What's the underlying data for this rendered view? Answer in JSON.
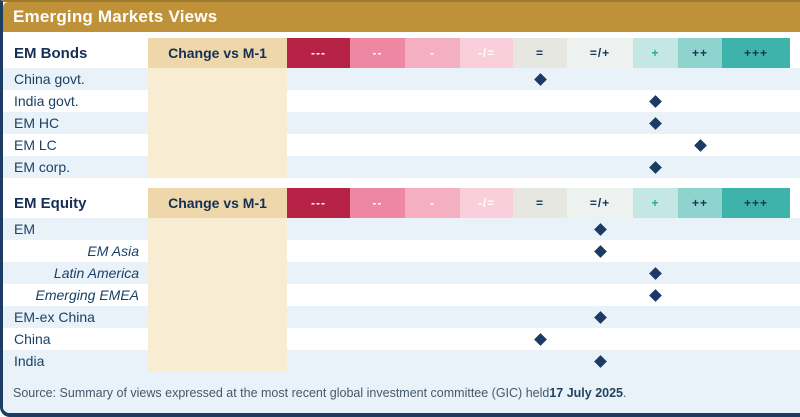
{
  "title": "Emerging Markets Views",
  "scale": {
    "change_label": "Change vs M-1",
    "levels": [
      {
        "label": "---",
        "bg": "#b62346",
        "fg": "#ffffff"
      },
      {
        "label": "--",
        "bg": "#ee87a2",
        "fg": "#ffffff"
      },
      {
        "label": "-",
        "bg": "#f4afc2",
        "fg": "#ffffff"
      },
      {
        "label": "-/=",
        "bg": "#f9cfdb",
        "fg": "#ffffff"
      },
      {
        "label": "=",
        "bg": "#e6e7e1",
        "fg": "#17365c"
      },
      {
        "label": "=/+",
        "bg": "#edf2ef",
        "fg": "#17365c"
      },
      {
        "label": "+",
        "bg": "#c4e7e3",
        "fg": "#28a79e"
      },
      {
        "label": "++",
        "bg": "#8ed3ce",
        "fg": "#17365c"
      },
      {
        "label": "+++",
        "bg": "#3db3ac",
        "fg": "#17365c"
      }
    ]
  },
  "sections": [
    {
      "name": "EM Bonds",
      "rows": [
        {
          "label": "China govt.",
          "view": "=",
          "italic": false
        },
        {
          "label": "India govt.",
          "view": "+",
          "italic": false
        },
        {
          "label": "EM HC",
          "view": "+",
          "italic": false
        },
        {
          "label": "EM LC",
          "view": "++",
          "italic": false
        },
        {
          "label": "EM corp.",
          "view": "+",
          "italic": false
        }
      ]
    },
    {
      "name": "EM Equity",
      "rows": [
        {
          "label": "EM",
          "view": "=/+",
          "italic": false
        },
        {
          "label": "EM Asia",
          "view": "=/+",
          "italic": true
        },
        {
          "label": "Latin America",
          "view": "+",
          "italic": true
        },
        {
          "label": "Emerging EMEA",
          "view": "+",
          "italic": true
        },
        {
          "label": "EM-ex China",
          "view": "=/+",
          "italic": false
        },
        {
          "label": "China",
          "view": "=",
          "italic": false
        },
        {
          "label": "India",
          "view": "=/+",
          "italic": false
        }
      ]
    }
  ],
  "source": {
    "prefix": "Source: Summary of views expressed at the most recent global investment committee (GIC) held ",
    "date": "17 July 2025",
    "suffix": "."
  },
  "colors": {
    "accent_gold": "#bf9239",
    "navy_text": "#1b4066",
    "row_alt_blue": "#e9f2f9",
    "tan_header": "#eed8ab",
    "tan_row": "#f8ecd2",
    "diamond_navy": "#1b3a64",
    "border_navy": "#1d3c63",
    "footer_bg": "#e9f2f9"
  },
  "chart_data": {
    "type": "table",
    "title": "Emerging Markets Views",
    "scale_levels": [
      "---",
      "--",
      "-",
      "-/=",
      "=",
      "=/+",
      "+",
      "++",
      "+++"
    ],
    "change_column": "Change vs M-1",
    "sections": [
      {
        "name": "EM Bonds",
        "rows": [
          {
            "label": "China govt.",
            "view": "="
          },
          {
            "label": "India govt.",
            "view": "+"
          },
          {
            "label": "EM HC",
            "view": "+"
          },
          {
            "label": "EM LC",
            "view": "++"
          },
          {
            "label": "EM corp.",
            "view": "+"
          }
        ]
      },
      {
        "name": "EM Equity",
        "rows": [
          {
            "label": "EM",
            "view": "=/+"
          },
          {
            "label": "EM Asia",
            "view": "=/+"
          },
          {
            "label": "Latin America",
            "view": "+"
          },
          {
            "label": "Emerging EMEA",
            "view": "+"
          },
          {
            "label": "EM-ex China",
            "view": "=/+"
          },
          {
            "label": "China",
            "view": "="
          },
          {
            "label": "India",
            "view": "=/+"
          }
        ]
      }
    ],
    "footnote": "Source: Summary of views expressed at the most recent global investment committee (GIC) held 17 July 2025."
  }
}
